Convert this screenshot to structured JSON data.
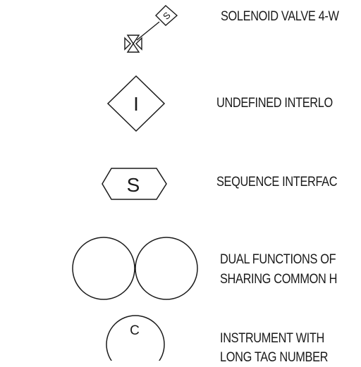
{
  "symbols": [
    {
      "icon": "solenoid-valve-symbol",
      "glyph": "S",
      "lines": [
        "SOLENOID VALVE 4-W"
      ]
    },
    {
      "icon": "undefined-interlock-diamond",
      "glyph": "I",
      "lines": [
        "UNDEFINED INTERLO"
      ]
    },
    {
      "icon": "sequence-interface-hexagon",
      "glyph": "S",
      "lines": [
        "SEQUENCE INTERFAC"
      ]
    },
    {
      "icon": "dual-function-circles",
      "glyph": "",
      "lines": [
        "DUAL FUNCTIONS OF",
        "SHARING COMMON H"
      ]
    },
    {
      "icon": "instrument-long-tag-circle",
      "glyph": "C",
      "lines": [
        "INSTRUMENT WITH",
        "LONG TAG NUMBER"
      ]
    }
  ]
}
